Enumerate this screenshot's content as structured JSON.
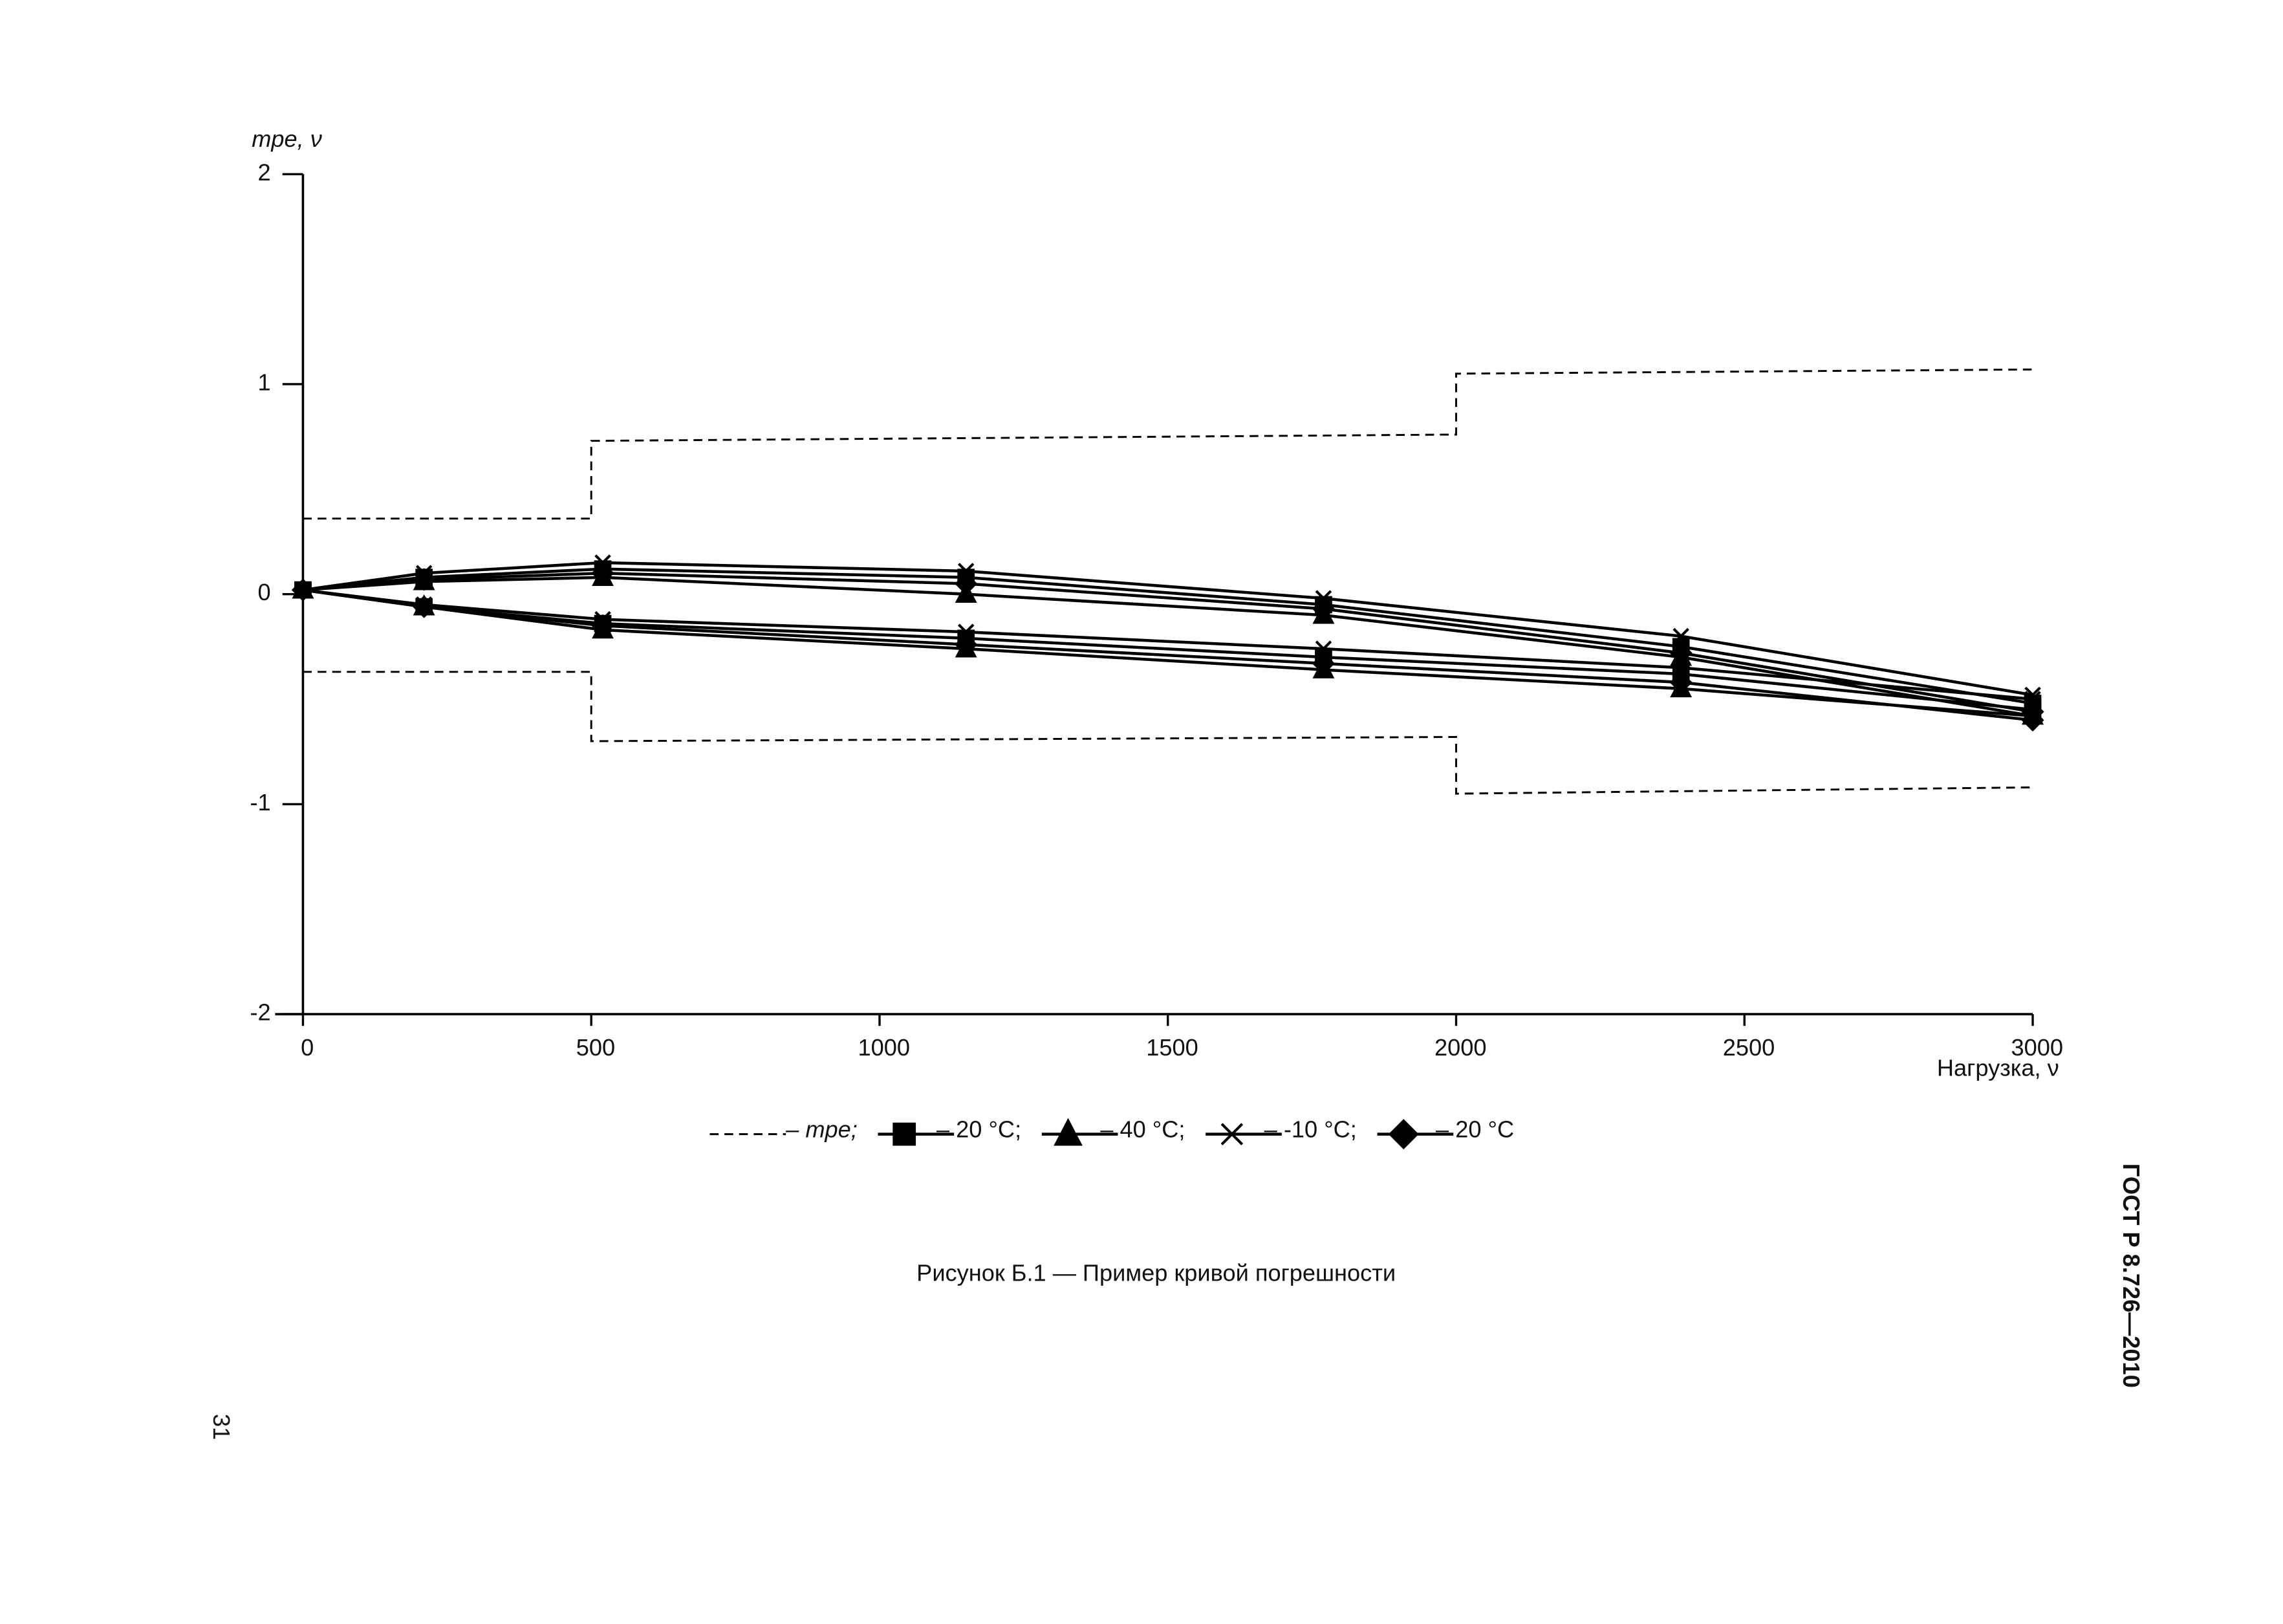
{
  "chart_data": {
    "type": "line",
    "y_label": "mpe, ν",
    "x_label": "Нагрузка, ν",
    "xlim": [
      0,
      3000
    ],
    "xticks": [
      0,
      500,
      1000,
      1500,
      2000,
      2500,
      3000
    ],
    "ylim": [
      -2,
      2
    ],
    "yticks": [
      -2,
      -1,
      0,
      1,
      2
    ],
    "x": [
      0,
      210,
      520,
      1150,
      1770,
      2390,
      3000,
      3000,
      2390,
      1770,
      1150,
      520,
      210,
      0
    ],
    "series": [
      {
        "name": "– mpe;",
        "color": "#000000",
        "line_style": "dashed",
        "marker": "none",
        "x": [
          0,
          500,
          500,
          2000,
          2000,
          3000,
          3000,
          0,
          500,
          500,
          2000,
          2000,
          3000
        ],
        "values": [
          0.36,
          0.36,
          0.73,
          0.76,
          1.05,
          1.07,
          null,
          -0.37,
          -0.37,
          -0.7,
          -0.68,
          -0.95,
          -0.92
        ]
      },
      {
        "name": "– 20 °C;",
        "color": "#000000",
        "line_style": "solid",
        "marker": "square",
        "values": [
          0.02,
          0.08,
          0.12,
          0.08,
          -0.05,
          -0.25,
          -0.52,
          -0.55,
          -0.38,
          -0.3,
          -0.21,
          -0.14,
          -0.06,
          0.02
        ]
      },
      {
        "name": "– 40 °C;",
        "color": "#000000",
        "line_style": "solid",
        "marker": "triangle",
        "values": [
          0.02,
          0.06,
          0.08,
          0.0,
          -0.1,
          -0.3,
          -0.58,
          -0.58,
          -0.45,
          -0.36,
          -0.26,
          -0.17,
          -0.06,
          0.02
        ]
      },
      {
        "name": "– -10 °C;",
        "color": "#000000",
        "line_style": "solid",
        "marker": "x",
        "values": [
          0.02,
          0.1,
          0.15,
          0.11,
          -0.02,
          -0.2,
          -0.48,
          -0.5,
          -0.35,
          -0.26,
          -0.18,
          -0.12,
          -0.05,
          0.02
        ]
      },
      {
        "name": "– 20 °C",
        "color": "#000000",
        "line_style": "solid",
        "marker": "diamond",
        "values": [
          0.02,
          0.07,
          0.1,
          0.05,
          -0.07,
          -0.28,
          -0.56,
          -0.6,
          -0.42,
          -0.33,
          -0.24,
          -0.15,
          -0.06,
          0.02
        ]
      }
    ]
  },
  "caption": "Рисунок Б.1 — Пример кривой погрешности",
  "standard": "ГОСТ Р 8.726—2010",
  "page_number": "31"
}
